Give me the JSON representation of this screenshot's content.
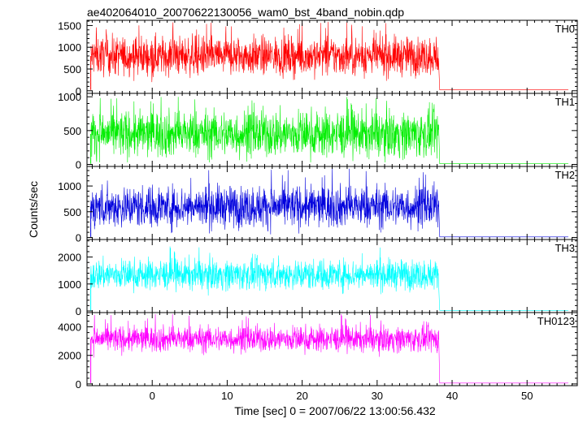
{
  "chart_data": {
    "title": "ae402064010_20070622130056_wam0_bst_4band_nobin.qdp",
    "ylabel": "Counts/sec",
    "xlabel": "Time [sec] 0 = 2007/06/22 13:00:56.432",
    "type": "line",
    "grid": false,
    "x_range": [
      -8.7,
      56.7
    ],
    "x_ticks": [
      0,
      10,
      20,
      30,
      40,
      50
    ],
    "x_tick_labels": [
      "0",
      "10",
      "20",
      "30",
      "40",
      "50"
    ],
    "burst_window": [
      -8.2,
      38.2
    ],
    "panels": [
      {
        "name": "TH0",
        "color": "#ff0000",
        "ylim": [
          -60,
          1620
        ],
        "y_ticks": [
          0,
          500,
          1000,
          1500
        ],
        "y_tick_labels": [
          "0",
          "500",
          "1000",
          "1500"
        ],
        "mean": 800,
        "spread": 220,
        "max": 1590,
        "min": 200,
        "post_level": 20
      },
      {
        "name": "TH1",
        "color": "#00ee00",
        "ylim": [
          -30,
          1050
        ],
        "y_ticks": [
          0,
          500,
          1000
        ],
        "y_tick_labels": [
          "0",
          "500",
          "1000"
        ],
        "mean": 450,
        "spread": 170,
        "max": 1000,
        "min": 30,
        "post_level": 10
      },
      {
        "name": "TH2",
        "color": "#0000dd",
        "ylim": [
          -40,
          1380
        ],
        "y_ticks": [
          0,
          500,
          1000
        ],
        "y_tick_labels": [
          "0",
          "500",
          "1000"
        ],
        "mean": 600,
        "spread": 200,
        "max": 1340,
        "min": 60,
        "post_level": 10
      },
      {
        "name": "TH3",
        "color": "#00ffff",
        "ylim": [
          -60,
          2650
        ],
        "y_ticks": [
          0,
          1000,
          2000
        ],
        "y_tick_labels": [
          "0",
          "1000",
          "2000"
        ],
        "mean": 1350,
        "spread": 280,
        "max": 2400,
        "min": 400,
        "post_level": 20
      },
      {
        "name": "TH0123",
        "color": "#ff00ff",
        "ylim": [
          -120,
          5000
        ],
        "y_ticks": [
          0,
          2000,
          4000
        ],
        "y_tick_labels": [
          "0",
          "2000",
          "4000"
        ],
        "mean": 3150,
        "spread": 450,
        "max": 4900,
        "min": 1300,
        "post_level": 60
      }
    ]
  }
}
